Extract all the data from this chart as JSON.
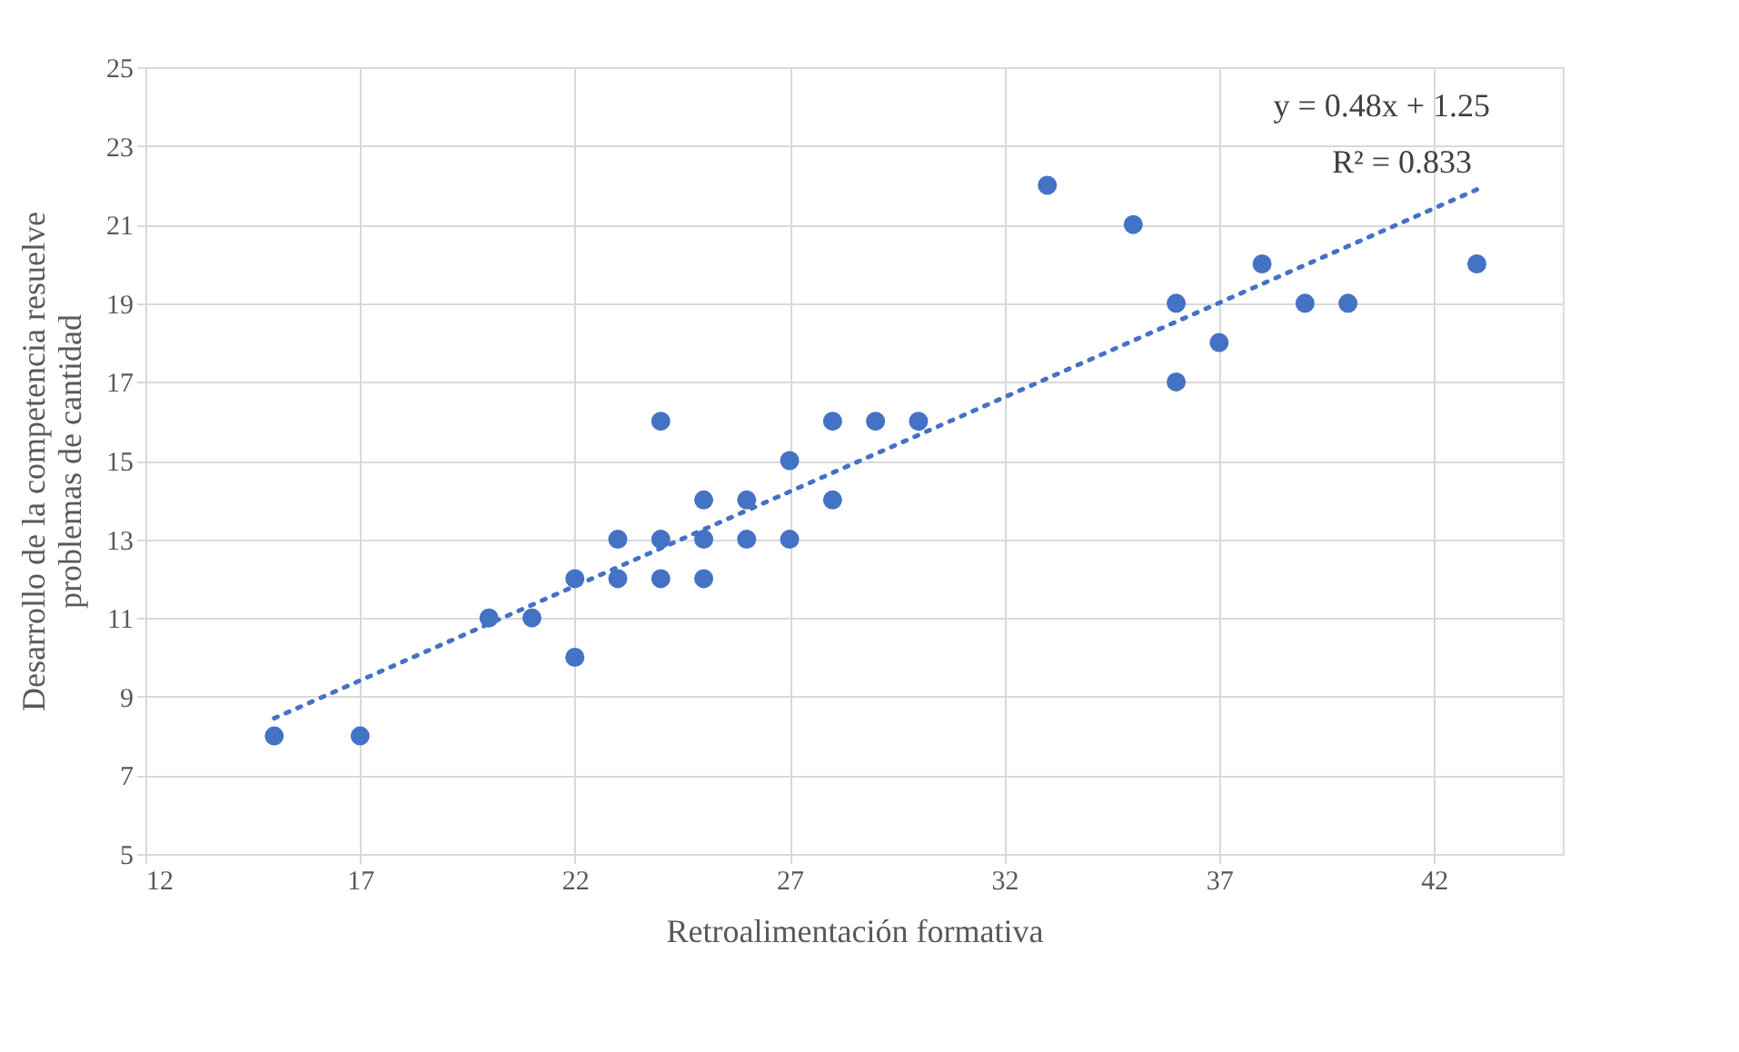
{
  "chart_data": {
    "type": "scatter",
    "xlabel": "Retroalimentación formativa",
    "ylabel": "Desarrollo de la competencia resuelve problemas de cantidad",
    "x": [
      15,
      17,
      20,
      21,
      22,
      22,
      23,
      23,
      24,
      24,
      24,
      25,
      25,
      25,
      26,
      26,
      27,
      27,
      28,
      28,
      29,
      30,
      33,
      35,
      36,
      36,
      37,
      38,
      39,
      40,
      43
    ],
    "series": [
      {
        "color": "#4472c4",
        "marker": "circle",
        "values": [
          8,
          8,
          11,
          11,
          12,
          10,
          13,
          12,
          16,
          13,
          12,
          14,
          13,
          12,
          14,
          13,
          15,
          13,
          16,
          14,
          16,
          16,
          22,
          21,
          19,
          17,
          18,
          20,
          19,
          19,
          20
        ]
      },
      {
        "type": "line",
        "color": "#4472c4",
        "line_style": "dotted",
        "x": [
          15,
          43
        ],
        "values": [
          8.45,
          21.89
        ]
      }
    ],
    "annotations": [
      "y = 0.48x + 1.25",
      "R² = 0.833"
    ],
    "xlim": [
      12,
      45
    ],
    "xticks": [
      12,
      17,
      22,
      27,
      32,
      37,
      42
    ],
    "ylim": [
      5,
      25
    ],
    "yticks": [
      5,
      7,
      9,
      11,
      13,
      15,
      17,
      19,
      21,
      23,
      25
    ],
    "grid": true
  }
}
